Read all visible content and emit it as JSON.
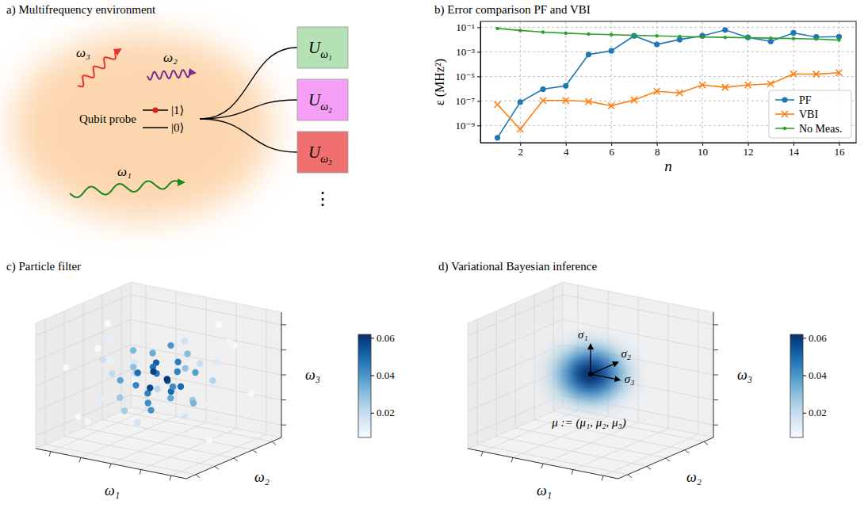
{
  "diagram": {
    "title": "a) Multifrequency environment",
    "environment_frequencies": [
      "ω₃",
      "ω₂",
      "ω₁"
    ],
    "probe_label": "Qubit probe",
    "levels": [
      "|1⟩",
      "|0⟩"
    ],
    "unitaries": [
      {
        "symbol": "U",
        "subscript": "ω₁"
      },
      {
        "symbol": "U",
        "subscript": "ω₂"
      },
      {
        "symbol": "U",
        "subscript": "ω₃"
      }
    ],
    "continuation": "⋮"
  },
  "chart_data": [
    {
      "type": "line",
      "title": "b) Error comparison PF and VBI",
      "x": [
        1,
        2,
        3,
        4,
        5,
        6,
        7,
        8,
        9,
        10,
        11,
        12,
        13,
        14,
        15,
        16
      ],
      "series": [
        {
          "name": "PF",
          "color": "#1f77b4",
          "marker": "circle",
          "line_style": "solid",
          "values": [
            1e-10,
            8e-08,
            9e-07,
            1.7e-06,
            0.0006,
            0.0012,
            0.02,
            0.004,
            0.01,
            0.02,
            0.06,
            0.015,
            0.007,
            0.035,
            0.016,
            0.017
          ]
        },
        {
          "name": "VBI",
          "color": "#ff7f0e",
          "marker": "x",
          "line_style": "solid",
          "values": [
            5e-08,
            5e-10,
            1.1e-07,
            1.1e-07,
            9e-08,
            4e-08,
            1.2e-07,
            6e-07,
            4.5e-07,
            2e-06,
            1.3e-06,
            2e-06,
            2.5e-06,
            1.6e-05,
            1.5e-05,
            2e-05
          ]
        },
        {
          "name": "No Meas.",
          "color": "#2ca02c",
          "marker": "point",
          "line_style": "solid",
          "values": [
            0.08,
            0.055,
            0.04,
            0.033,
            0.028,
            0.025,
            0.022,
            0.02,
            0.018,
            0.016,
            0.015,
            0.014,
            0.013,
            0.012,
            0.011,
            0.009
          ]
        }
      ],
      "xlabel": "n",
      "ylabel": "ε (MHz²)",
      "xlim": [
        0.25,
        16.75
      ],
      "ylim": [
        4e-11,
        0.3
      ],
      "xticks": [
        2,
        4,
        6,
        8,
        10,
        12,
        14,
        16
      ],
      "yticks": [
        {
          "value": 1e-09,
          "label": "10⁻⁹"
        },
        {
          "value": 1e-07,
          "label": "10⁻⁷"
        },
        {
          "value": 1e-05,
          "label": "10⁻⁵"
        },
        {
          "value": 0.001,
          "label": "10⁻³"
        },
        {
          "value": 0.1,
          "label": "10⁻¹"
        }
      ],
      "log": "y",
      "grid": true,
      "legend": "lower right"
    },
    {
      "type": "scatter3d",
      "title": "c) Particle filter",
      "x": [
        0.05,
        -0.1,
        0.15,
        -0.05,
        0.2,
        -0.2,
        0.1,
        -0.15,
        0.25,
        -0.3,
        0.0,
        0.05,
        0.3,
        -0.35,
        0.35,
        -0.3,
        0.4,
        -0.4,
        0.1,
        -0.05,
        0.45,
        -0.45,
        0.2,
        -0.2,
        0.5,
        -0.5,
        0.3,
        -0.3,
        0.55,
        -0.55,
        0.0,
        0.1,
        0.6,
        -0.6,
        0.4,
        -0.4,
        0.65,
        -0.65,
        0.2,
        -0.2,
        0.7,
        -0.7,
        0.5,
        -0.5,
        0.75,
        -0.75,
        0.8,
        -0.8,
        0.3,
        -0.3,
        0.85,
        -0.85,
        0.1,
        -0.1,
        0.0,
        0.12,
        -0.22,
        0.28
      ],
      "y": [
        0.1,
        0.05,
        -0.05,
        -0.1,
        0.15,
        0.2,
        -0.2,
        -0.2,
        0.0,
        0.0,
        0.3,
        -0.3,
        0.3,
        -0.25,
        -0.3,
        0.35,
        0.1,
        0.1,
        0.45,
        -0.45,
        -0.15,
        -0.1,
        0.4,
        -0.4,
        0.35,
        0.3,
        -0.5,
        -0.5,
        0.0,
        -0.3,
        0.55,
        -0.6,
        -0.4,
        0.45,
        0.6,
        -0.6,
        0.2,
        0.0,
        0.65,
        -0.7,
        -0.6,
        0.6,
        0.7,
        -0.7,
        0.4,
        -0.5,
        -0.2,
        0.2,
        0.8,
        -0.8,
        0.6,
        -0.6,
        0.1,
        0.0,
        -0.05,
        0.22,
        0.12,
        -0.18
      ],
      "z": [
        0.0,
        0.1,
        0.05,
        -0.1,
        -0.1,
        0.1,
        0.2,
        0.15,
        0.2,
        -0.15,
        -0.2,
        -0.25,
        0.1,
        0.0,
        -0.1,
        0.25,
        -0.3,
        0.35,
        0.3,
        0.35,
        0.35,
        -0.35,
        -0.4,
        -0.4,
        0.0,
        -0.1,
        0.1,
        0.2,
        0.4,
        0.3,
        0.45,
        -0.45,
        -0.3,
        0.0,
        0.2,
        -0.2,
        -0.5,
        0.5,
        -0.55,
        0.5,
        0.3,
        -0.4,
        0.5,
        -0.55,
        0.6,
        -0.6,
        -0.7,
        0.65,
        0.7,
        0.7,
        -0.2,
        0.2,
        0.55,
        -0.5,
        0.3,
        0.25,
        -0.3,
        -0.05
      ],
      "values": [
        0.06,
        0.058,
        0.055,
        0.057,
        0.05,
        0.048,
        0.047,
        0.049,
        0.045,
        0.044,
        0.043,
        0.042,
        0.038,
        0.037,
        0.036,
        0.035,
        0.033,
        0.032,
        0.031,
        0.03,
        0.029,
        0.028,
        0.027,
        0.026,
        0.024,
        0.023,
        0.022,
        0.021,
        0.02,
        0.019,
        0.018,
        0.017,
        0.016,
        0.015,
        0.014,
        0.013,
        0.012,
        0.012,
        0.011,
        0.011,
        0.01,
        0.01,
        0.009,
        0.009,
        0.008,
        0.008,
        0.008,
        0.007,
        0.007,
        0.007,
        0.007,
        0.007,
        0.04,
        0.041,
        0.052,
        0.046,
        0.045,
        0.05
      ],
      "xlabel": "ω₁",
      "ylabel": "ω₂",
      "zlabel": "ω₃",
      "xlim": [
        -1,
        1
      ],
      "ylim": [
        -1,
        1
      ],
      "zlim": [
        -1,
        1
      ],
      "colorbar": {
        "range": [
          0.007,
          0.062
        ],
        "ticks": [
          0.02,
          0.04,
          0.06
        ]
      },
      "tick_labels": false,
      "grid": true
    },
    {
      "type": "gaussian3d",
      "title": "d) Variational Bayesian inference",
      "mean": [
        0,
        0,
        0.1
      ],
      "sigma": [
        0.35,
        0.35,
        0.35
      ],
      "peak": 0.062,
      "mean_label": "μ := (μ₁, μ₂, μ₃)",
      "sigma_labels": [
        "σ₁",
        "σ₂",
        "σ₃"
      ],
      "xlabel": "ω₁",
      "ylabel": "ω₂",
      "zlabel": "ω₃",
      "xlim": [
        -1,
        1
      ],
      "ylim": [
        -1,
        1
      ],
      "zlim": [
        -1,
        1
      ],
      "colorbar": {
        "range": [
          0.007,
          0.062
        ],
        "ticks": [
          0.02,
          0.04,
          0.06
        ]
      },
      "tick_labels": false,
      "grid": true
    }
  ]
}
